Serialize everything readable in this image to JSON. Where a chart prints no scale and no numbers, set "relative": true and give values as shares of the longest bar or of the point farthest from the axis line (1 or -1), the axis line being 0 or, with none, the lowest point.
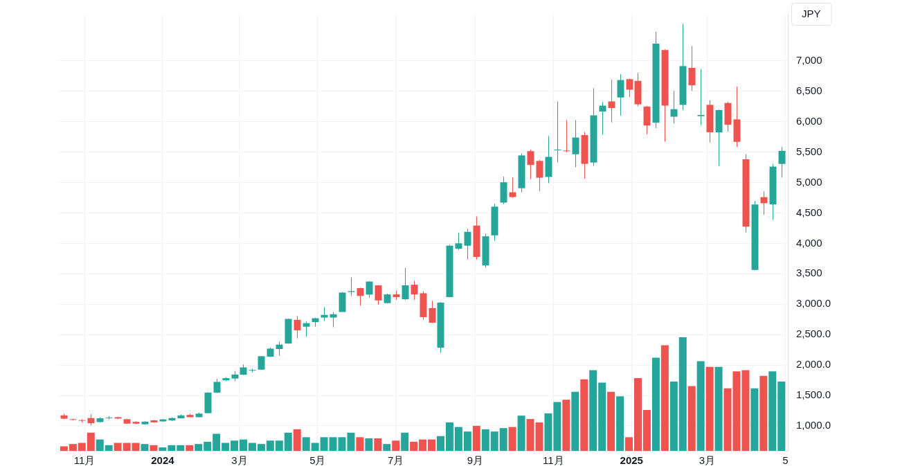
{
  "chart_data": [
    {
      "type": "candlestick",
      "ylabel": "JPY",
      "grid": true,
      "x": [
        "2023-10-16",
        "2023-10-23",
        "2023-10-30",
        "2023-11-06",
        "2023-11-13",
        "2023-11-20",
        "2023-11-27",
        "2023-12-04",
        "2023-12-11",
        "2023-12-18",
        "2023-12-25",
        "2024-01-01",
        "2024-01-08",
        "2024-01-15",
        "2024-01-22",
        "2024-01-29",
        "2024-02-05",
        "2024-02-12",
        "2024-02-19",
        "2024-02-26",
        "2024-03-04",
        "2024-03-11",
        "2024-03-18",
        "2024-03-25",
        "2024-04-01",
        "2024-04-08",
        "2024-04-15",
        "2024-04-22",
        "2024-04-29",
        "2024-05-06",
        "2024-05-13",
        "2024-05-20",
        "2024-05-27",
        "2024-06-03",
        "2024-06-10",
        "2024-06-17",
        "2024-06-24",
        "2024-07-01",
        "2024-07-08",
        "2024-07-15",
        "2024-07-22",
        "2024-07-29",
        "2024-08-05",
        "2024-08-12",
        "2024-08-19",
        "2024-08-26",
        "2024-09-02",
        "2024-09-09",
        "2024-09-16",
        "2024-09-23",
        "2024-09-30",
        "2024-10-07",
        "2024-10-14",
        "2024-10-21",
        "2024-10-28",
        "2024-11-04",
        "2024-11-11",
        "2024-11-18",
        "2024-11-25",
        "2024-12-02",
        "2024-12-09",
        "2024-12-16",
        "2024-12-23",
        "2024-12-30",
        "2025-01-06",
        "2025-01-13",
        "2025-01-20",
        "2025-01-27",
        "2025-02-03",
        "2025-02-10",
        "2025-02-17",
        "2025-02-24",
        "2025-03-03",
        "2025-03-10",
        "2025-03-17",
        "2025-03-24",
        "2025-03-31",
        "2025-04-07",
        "2025-04-14",
        "2025-04-21",
        "2025-04-28"
      ],
      "ohlc": [
        [
          1173,
          1198,
          1110,
          1118
        ],
        [
          1110,
          1120,
          1090,
          1100
        ],
        [
          1095,
          1110,
          1055,
          1090
        ],
        [
          1129,
          1190,
          1008,
          1044
        ],
        [
          1063,
          1140,
          1055,
          1125
        ],
        [
          1130,
          1160,
          1105,
          1138
        ],
        [
          1143,
          1150,
          1115,
          1120
        ],
        [
          1110,
          1118,
          1030,
          1037
        ],
        [
          1066,
          1075,
          1025,
          1037
        ],
        [
          1026,
          1075,
          1020,
          1070
        ],
        [
          1091,
          1100,
          1050,
          1058
        ],
        [
          1074,
          1115,
          1068,
          1107
        ],
        [
          1091,
          1140,
          1080,
          1129
        ],
        [
          1125,
          1190,
          1120,
          1173
        ],
        [
          1180,
          1200,
          1140,
          1143
        ],
        [
          1143,
          1218,
          1140,
          1201
        ],
        [
          1209,
          1555,
          1205,
          1547
        ],
        [
          1547,
          1771,
          1540,
          1723
        ],
        [
          1749,
          1800,
          1740,
          1785
        ],
        [
          1778,
          1903,
          1734,
          1844
        ],
        [
          1841,
          2010,
          1835,
          1961
        ],
        [
          1910,
          1940,
          1880,
          1920
        ],
        [
          1925,
          2150,
          1920,
          2145
        ],
        [
          2137,
          2290,
          2130,
          2270
        ],
        [
          2263,
          2384,
          2153,
          2336
        ],
        [
          2354,
          2765,
          2350,
          2758
        ],
        [
          2743,
          2805,
          2439,
          2571
        ],
        [
          2630,
          2721,
          2468,
          2688
        ],
        [
          2706,
          2780,
          2630,
          2769
        ],
        [
          2780,
          2952,
          2725,
          2824
        ],
        [
          2780,
          2868,
          2622,
          2835
        ],
        [
          2872,
          3200,
          2870,
          3191
        ],
        [
          3200,
          3441,
          3136,
          3215
        ],
        [
          3265,
          3270,
          2975,
          3136
        ],
        [
          3158,
          3380,
          3108,
          3372
        ],
        [
          3310,
          3315,
          2990,
          3062
        ],
        [
          3018,
          3175,
          3010,
          3161
        ],
        [
          3161,
          3227,
          3070,
          3117
        ],
        [
          3081,
          3596,
          3070,
          3310
        ],
        [
          3320,
          3386,
          3070,
          3161
        ],
        [
          3180,
          3210,
          2747,
          2787
        ],
        [
          2935,
          3056,
          2690,
          2696
        ],
        [
          2285,
          3035,
          2200,
          3025
        ],
        [
          3117,
          3975,
          3110,
          3962
        ],
        [
          3911,
          4177,
          3891,
          4001
        ],
        [
          3962,
          4237,
          3738,
          4189
        ],
        [
          4292,
          4442,
          3734,
          3777
        ],
        [
          3636,
          4160,
          3600,
          4116
        ],
        [
          4131,
          4650,
          4042,
          4603
        ],
        [
          4670,
          5096,
          4644,
          5004
        ],
        [
          4839,
          5085,
          4750,
          4760
        ],
        [
          4906,
          5476,
          4839,
          5445
        ],
        [
          5515,
          5543,
          5055,
          5288
        ],
        [
          5354,
          5371,
          4859,
          5078
        ],
        [
          5091,
          5764,
          4987,
          5421
        ],
        [
          5530,
          6329,
          5330,
          5540
        ],
        [
          5525,
          6026,
          5495,
          5515
        ],
        [
          5464,
          6026,
          5251,
          5739
        ],
        [
          5779,
          5829,
          5063,
          5306
        ],
        [
          5328,
          6549,
          5272,
          6104
        ],
        [
          6166,
          6325,
          5783,
          6263
        ],
        [
          6333,
          6689,
          5989,
          6223
        ],
        [
          6397,
          6780,
          6099,
          6684
        ],
        [
          6698,
          6710,
          6406,
          6525
        ],
        [
          6670,
          6802,
          6252,
          6285
        ],
        [
          6248,
          6260,
          5789,
          5937
        ],
        [
          5981,
          7474,
          5894,
          7281
        ],
        [
          7177,
          7190,
          5670,
          6263
        ],
        [
          6081,
          6505,
          5970,
          6205
        ],
        [
          6276,
          7606,
          6190,
          6913
        ],
        [
          6884,
          7243,
          6505,
          6597
        ],
        [
          6090,
          6866,
          5942,
          6110
        ],
        [
          6276,
          6351,
          5657,
          5826
        ],
        [
          5822,
          6200,
          5272,
          6190
        ],
        [
          6307,
          6325,
          5836,
          5948
        ],
        [
          6037,
          6577,
          5582,
          5668
        ],
        [
          5382,
          5462,
          4180,
          4276
        ],
        [
          3562,
          4699,
          3555,
          4639
        ],
        [
          4759,
          4855,
          4468,
          4659
        ],
        [
          4639,
          5305,
          4386,
          5261
        ],
        [
          5305,
          5583,
          5080,
          5520
        ]
      ],
      "colors": [
        "#ef5350",
        "#ef5350",
        "#ef5350",
        "#ef5350",
        "#26a69a",
        "#26a69a",
        "#ef5350",
        "#ef5350",
        "#ef5350",
        "#26a69a",
        "#ef5350",
        "#26a69a",
        "#26a69a",
        "#26a69a",
        "#ef5350",
        "#26a69a",
        "#26a69a",
        "#26a69a",
        "#26a69a",
        "#26a69a",
        "#26a69a",
        "#26a69a",
        "#26a69a",
        "#26a69a",
        "#26a69a",
        "#26a69a",
        "#ef5350",
        "#26a69a",
        "#26a69a",
        "#26a69a",
        "#26a69a",
        "#26a69a",
        "#26a69a",
        "#ef5350",
        "#26a69a",
        "#ef5350",
        "#26a69a",
        "#ef5350",
        "#26a69a",
        "#ef5350",
        "#ef5350",
        "#ef5350",
        "#26a69a",
        "#26a69a",
        "#26a69a",
        "#26a69a",
        "#ef5350",
        "#26a69a",
        "#26a69a",
        "#26a69a",
        "#ef5350",
        "#26a69a",
        "#ef5350",
        "#ef5350",
        "#26a69a",
        "#26a69a",
        "#ef5350",
        "#26a69a",
        "#ef5350",
        "#26a69a",
        "#26a69a",
        "#ef5350",
        "#26a69a",
        "#ef5350",
        "#ef5350",
        "#ef5350",
        "#26a69a",
        "#ef5350",
        "#26a69a",
        "#26a69a",
        "#ef5350",
        "#26a69a",
        "#ef5350",
        "#26a69a",
        "#ef5350",
        "#ef5350",
        "#ef5350",
        "#26a69a",
        "#ef5350",
        "#26a69a",
        "#26a69a"
      ],
      "xlim": [
        "2023-10-12",
        "2025-05-03"
      ],
      "xticks": [
        {
          "value": "2023-11-01",
          "label": "11月"
        },
        {
          "value": "2024-01-01",
          "label": "2024"
        },
        {
          "value": "2024-03-01",
          "label": "3月"
        },
        {
          "value": "2024-05-01",
          "label": "5月"
        },
        {
          "value": "2024-07-01",
          "label": "7月"
        },
        {
          "value": "2024-09-01",
          "label": "9月"
        },
        {
          "value": "2024-11-01",
          "label": "11月"
        },
        {
          "value": "2025-01-01",
          "label": "2025"
        },
        {
          "value": "2025-03-01",
          "label": "3月"
        },
        {
          "value": "2025-05-01",
          "label": "5"
        }
      ],
      "ylim": [
        590,
        7760
      ],
      "yticks": [
        {
          "value": 1000,
          "label": "1,000.0"
        },
        {
          "value": 1500,
          "label": "1,500.0"
        },
        {
          "value": 2000,
          "label": "2,000.0"
        },
        {
          "value": 2500,
          "label": "2,500.0"
        },
        {
          "value": 3000,
          "label": "3,000.0"
        },
        {
          "value": 3500,
          "label": "3,500"
        },
        {
          "value": 4000,
          "label": "4,000"
        },
        {
          "value": 4500,
          "label": "4,500"
        },
        {
          "value": 5000,
          "label": "5,000"
        },
        {
          "value": 5500,
          "label": "5,500"
        },
        {
          "value": 6000,
          "label": "6,000"
        },
        {
          "value": 6500,
          "label": "6,500"
        },
        {
          "value": 7000,
          "label": "7,000"
        }
      ]
    },
    {
      "type": "bar",
      "relative": true,
      "tick_labels": false,
      "x": [
        "2023-10-16",
        "2023-10-23",
        "2023-10-30",
        "2023-11-06",
        "2023-11-13",
        "2023-11-20",
        "2023-11-27",
        "2023-12-04",
        "2023-12-11",
        "2023-12-18",
        "2023-12-25",
        "2024-01-01",
        "2024-01-08",
        "2024-01-15",
        "2024-01-22",
        "2024-01-29",
        "2024-02-05",
        "2024-02-12",
        "2024-02-19",
        "2024-02-26",
        "2024-03-04",
        "2024-03-11",
        "2024-03-18",
        "2024-03-25",
        "2024-04-01",
        "2024-04-08",
        "2024-04-15",
        "2024-04-22",
        "2024-04-29",
        "2024-05-06",
        "2024-05-13",
        "2024-05-20",
        "2024-05-27",
        "2024-06-03",
        "2024-06-10",
        "2024-06-17",
        "2024-06-24",
        "2024-07-01",
        "2024-07-08",
        "2024-07-15",
        "2024-07-22",
        "2024-07-29",
        "2024-08-05",
        "2024-08-12",
        "2024-08-19",
        "2024-08-26",
        "2024-09-02",
        "2024-09-09",
        "2024-09-16",
        "2024-09-23",
        "2024-09-30",
        "2024-10-07",
        "2024-10-14",
        "2024-10-21",
        "2024-10-28",
        "2024-11-04",
        "2024-11-11",
        "2024-11-18",
        "2024-11-25",
        "2024-12-02",
        "2024-12-09",
        "2024-12-16",
        "2024-12-23",
        "2024-12-30",
        "2025-01-06",
        "2025-01-13",
        "2025-01-20",
        "2025-01-27",
        "2025-02-03",
        "2025-02-10",
        "2025-02-17",
        "2025-02-24",
        "2025-03-03",
        "2025-03-10",
        "2025-03-17",
        "2025-03-24",
        "2025-03-31",
        "2025-04-07",
        "2025-04-14",
        "2025-04-21",
        "2025-04-28"
      ],
      "xlim": [
        "2023-10-12",
        "2025-05-03"
      ],
      "colors": [
        "#ef5350",
        "#ef5350",
        "#ef5350",
        "#ef5350",
        "#26a69a",
        "#26a69a",
        "#ef5350",
        "#ef5350",
        "#ef5350",
        "#26a69a",
        "#ef5350",
        "#26a69a",
        "#26a69a",
        "#26a69a",
        "#ef5350",
        "#26a69a",
        "#26a69a",
        "#26a69a",
        "#26a69a",
        "#26a69a",
        "#26a69a",
        "#26a69a",
        "#26a69a",
        "#26a69a",
        "#26a69a",
        "#26a69a",
        "#ef5350",
        "#26a69a",
        "#26a69a",
        "#26a69a",
        "#26a69a",
        "#26a69a",
        "#26a69a",
        "#ef5350",
        "#26a69a",
        "#ef5350",
        "#26a69a",
        "#ef5350",
        "#26a69a",
        "#ef5350",
        "#ef5350",
        "#ef5350",
        "#26a69a",
        "#26a69a",
        "#26a69a",
        "#26a69a",
        "#ef5350",
        "#26a69a",
        "#26a69a",
        "#26a69a",
        "#ef5350",
        "#26a69a",
        "#ef5350",
        "#ef5350",
        "#26a69a",
        "#26a69a",
        "#ef5350",
        "#26a69a",
        "#ef5350",
        "#26a69a",
        "#26a69a",
        "#ef5350",
        "#26a69a",
        "#ef5350",
        "#ef5350",
        "#ef5350",
        "#26a69a",
        "#ef5350",
        "#26a69a",
        "#26a69a",
        "#ef5350",
        "#26a69a",
        "#ef5350",
        "#26a69a",
        "#ef5350",
        "#ef5350",
        "#ef5350",
        "#26a69a",
        "#ef5350",
        "#26a69a",
        "#26a69a"
      ],
      "values": [
        0.04,
        0.06,
        0.07,
        0.16,
        0.1,
        0.05,
        0.07,
        0.07,
        0.07,
        0.06,
        0.05,
        0.03,
        0.05,
        0.05,
        0.05,
        0.06,
        0.08,
        0.15,
        0.07,
        0.09,
        0.1,
        0.07,
        0.06,
        0.09,
        0.09,
        0.16,
        0.19,
        0.12,
        0.07,
        0.12,
        0.12,
        0.12,
        0.16,
        0.12,
        0.11,
        0.11,
        0.06,
        0.09,
        0.16,
        0.08,
        0.1,
        0.1,
        0.13,
        0.25,
        0.21,
        0.17,
        0.22,
        0.19,
        0.17,
        0.2,
        0.21,
        0.31,
        0.28,
        0.25,
        0.33,
        0.43,
        0.45,
        0.52,
        0.63,
        0.71,
        0.6,
        0.52,
        0.48,
        0.12,
        0.64,
        0.36,
        0.82,
        0.93,
        0.61,
        1,
        0.57,
        0.79,
        0.74,
        0.74,
        0.55,
        0.7,
        0.71,
        0.55,
        0.66,
        0.7,
        0.61
      ]
    }
  ]
}
